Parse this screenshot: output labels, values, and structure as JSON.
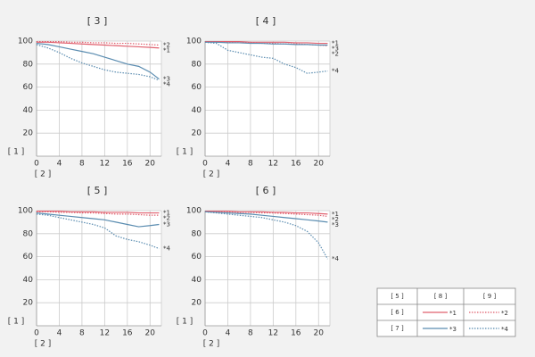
{
  "chart_data": [
    {
      "type": "line",
      "title": "[ 3 ]",
      "ylabel": "[ 1 ]",
      "xlabel": "[ 2 ]",
      "x": [
        0,
        2,
        4,
        6,
        8,
        10,
        12,
        14,
        16,
        18,
        20,
        21.6
      ],
      "xlim": [
        0,
        22
      ],
      "ylim": [
        0,
        100
      ],
      "xticks": [
        0,
        4,
        8,
        12,
        16,
        20
      ],
      "yticks": [
        20,
        40,
        60,
        80,
        100
      ],
      "grid": true,
      "series": [
        {
          "name": "*1",
          "color": "#e0606e",
          "line_style": "solid",
          "values": [
            99,
            99,
            98.5,
            98,
            97.5,
            97,
            96.5,
            96,
            95.5,
            95,
            94.5,
            94
          ]
        },
        {
          "name": "*2",
          "color": "#e0606e",
          "line_style": "dotted",
          "values": [
            99.5,
            99.5,
            99.5,
            99,
            99,
            98.5,
            98.5,
            98,
            98,
            97.5,
            97,
            96.5
          ]
        },
        {
          "name": "*3",
          "color": "#5a8cb0",
          "line_style": "solid",
          "values": [
            98,
            97,
            95,
            93,
            91,
            89,
            86,
            83,
            80,
            78,
            73,
            67
          ]
        },
        {
          "name": "*4",
          "color": "#5a8cb0",
          "line_style": "dotted",
          "values": [
            97,
            94,
            90,
            85,
            81,
            78,
            75,
            73,
            72,
            71,
            69,
            66
          ]
        }
      ]
    },
    {
      "type": "line",
      "title": "[ 4 ]",
      "ylabel": "[ 1 ]",
      "xlabel": "[ 2 ]",
      "x": [
        0,
        2,
        4,
        6,
        8,
        10,
        12,
        14,
        16,
        18,
        20,
        21.6
      ],
      "xlim": [
        0,
        22
      ],
      "ylim": [
        0,
        100
      ],
      "xticks": [
        0,
        4,
        8,
        12,
        16,
        20
      ],
      "yticks": [
        20,
        40,
        60,
        80,
        100
      ],
      "grid": true,
      "series": [
        {
          "name": "*1",
          "color": "#e0606e",
          "line_style": "solid",
          "values": [
            99.5,
            99.5,
            99.5,
            99.5,
            99,
            99,
            99,
            99,
            98.5,
            98.5,
            98,
            98
          ]
        },
        {
          "name": "*2",
          "color": "#e0606e",
          "line_style": "dotted",
          "values": [
            99,
            99,
            99,
            98.5,
            98.5,
            98,
            98,
            97.5,
            97.5,
            97,
            96.5,
            96
          ]
        },
        {
          "name": "*3",
          "color": "#5a8cb0",
          "line_style": "solid",
          "values": [
            99,
            99,
            98.5,
            98.5,
            98,
            98,
            97.5,
            97.5,
            97,
            97,
            96.5,
            96.5
          ]
        },
        {
          "name": "*4",
          "color": "#5a8cb0",
          "line_style": "dotted",
          "values": [
            99,
            98,
            92,
            90,
            88,
            86,
            85,
            80,
            77,
            72,
            73,
            74
          ]
        }
      ]
    },
    {
      "type": "line",
      "title": "[ 5 ]",
      "ylabel": "[ 1 ]",
      "xlabel": "[ 2 ]",
      "x": [
        0,
        2,
        4,
        6,
        8,
        10,
        12,
        14,
        16,
        18,
        20,
        21.6
      ],
      "xlim": [
        0,
        22
      ],
      "ylim": [
        0,
        100
      ],
      "xticks": [
        0,
        4,
        8,
        12,
        16,
        20
      ],
      "yticks": [
        20,
        40,
        60,
        80,
        100
      ],
      "grid": true,
      "series": [
        {
          "name": "*1",
          "color": "#e0606e",
          "line_style": "solid",
          "values": [
            99.5,
            99.5,
            99.5,
            99,
            99,
            99,
            98.5,
            98.5,
            98.5,
            98,
            98,
            98
          ]
        },
        {
          "name": "*2",
          "color": "#e0606e",
          "line_style": "dotted",
          "values": [
            99,
            99,
            98.5,
            98.5,
            98,
            98,
            97.5,
            97,
            97,
            96.5,
            96,
            96
          ]
        },
        {
          "name": "*3",
          "color": "#5a8cb0",
          "line_style": "solid",
          "values": [
            98,
            97,
            96,
            95,
            94,
            93,
            92,
            90,
            88,
            86,
            87,
            88
          ]
        },
        {
          "name": "*4",
          "color": "#5a8cb0",
          "line_style": "dotted",
          "values": [
            97,
            96,
            94,
            92,
            90,
            88,
            85,
            78,
            75,
            73,
            70,
            67
          ]
        }
      ]
    },
    {
      "type": "line",
      "title": "[ 6 ]",
      "ylabel": "[ 1 ]",
      "xlabel": "[ 2 ]",
      "x": [
        0,
        2,
        4,
        6,
        8,
        10,
        12,
        14,
        16,
        18,
        20,
        21.6
      ],
      "xlim": [
        0,
        22
      ],
      "ylim": [
        0,
        100
      ],
      "xticks": [
        0,
        4,
        8,
        12,
        16,
        20
      ],
      "yticks": [
        20,
        40,
        60,
        80,
        100
      ],
      "grid": true,
      "series": [
        {
          "name": "*1",
          "color": "#e0606e",
          "line_style": "solid",
          "values": [
            99.5,
            99.5,
            99.5,
            99,
            99,
            99,
            98.5,
            98.5,
            98,
            98,
            97.5,
            97
          ]
        },
        {
          "name": "*2",
          "color": "#e0606e",
          "line_style": "dotted",
          "values": [
            99,
            99,
            99,
            98.5,
            98.5,
            98,
            98,
            97.5,
            97,
            96.5,
            96,
            95
          ]
        },
        {
          "name": "*3",
          "color": "#5a8cb0",
          "line_style": "solid",
          "values": [
            99,
            98.5,
            98,
            97.5,
            97,
            96,
            95,
            94,
            93,
            92,
            91,
            90
          ]
        },
        {
          "name": "*4",
          "color": "#5a8cb0",
          "line_style": "dotted",
          "values": [
            99,
            98,
            97,
            96,
            95,
            94,
            92,
            90,
            87,
            82,
            72,
            58
          ]
        }
      ]
    }
  ],
  "legend_table": {
    "header": [
      "[ 5 ]",
      "[ 8 ]",
      "[ 9 ]"
    ],
    "rows": [
      [
        "[ 6 ]",
        "*1",
        "*2"
      ],
      [
        "[ 7 ]",
        "*3",
        "*4"
      ]
    ]
  }
}
